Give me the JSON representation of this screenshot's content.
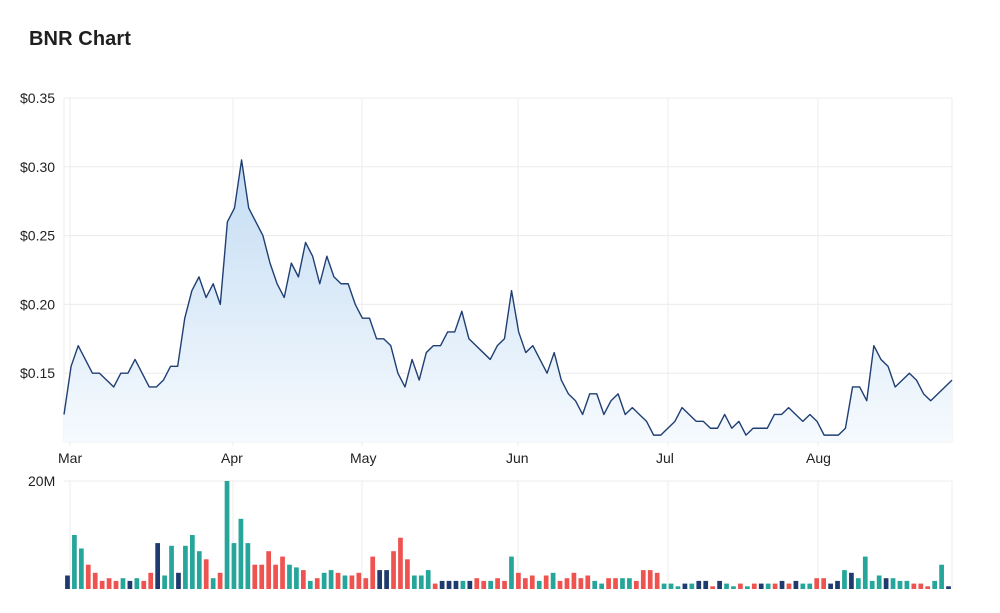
{
  "title": "BNR Chart",
  "chart_data": [
    {
      "type": "area",
      "x_ticks": [
        "Mar",
        "Apr",
        "May",
        "Jun",
        "Jul",
        "Aug"
      ],
      "y_ticks": [
        "$0.35",
        "$0.30",
        "$0.25",
        "$0.20",
        "$0.15"
      ],
      "ylim": [
        0.1,
        0.35
      ],
      "grid": true,
      "colors": {
        "line": "#1f3f73",
        "fill_top": "#c3dcf3",
        "fill_bottom": "#f6fafe",
        "grid": "#ececec"
      },
      "values": [
        0.12,
        0.155,
        0.17,
        0.16,
        0.15,
        0.15,
        0.145,
        0.14,
        0.15,
        0.15,
        0.16,
        0.15,
        0.14,
        0.14,
        0.145,
        0.155,
        0.155,
        0.19,
        0.21,
        0.22,
        0.205,
        0.215,
        0.2,
        0.26,
        0.27,
        0.305,
        0.27,
        0.26,
        0.25,
        0.23,
        0.215,
        0.205,
        0.23,
        0.22,
        0.245,
        0.235,
        0.215,
        0.235,
        0.22,
        0.215,
        0.215,
        0.2,
        0.19,
        0.19,
        0.175,
        0.175,
        0.17,
        0.15,
        0.14,
        0.16,
        0.145,
        0.165,
        0.17,
        0.17,
        0.18,
        0.18,
        0.195,
        0.175,
        0.17,
        0.165,
        0.16,
        0.17,
        0.175,
        0.21,
        0.18,
        0.165,
        0.17,
        0.16,
        0.15,
        0.165,
        0.145,
        0.135,
        0.13,
        0.12,
        0.135,
        0.135,
        0.12,
        0.13,
        0.135,
        0.12,
        0.125,
        0.12,
        0.115,
        0.105,
        0.105,
        0.11,
        0.115,
        0.125,
        0.12,
        0.115,
        0.115,
        0.11,
        0.11,
        0.12,
        0.11,
        0.115,
        0.105,
        0.11,
        0.11,
        0.11,
        0.12,
        0.12,
        0.125,
        0.12,
        0.115,
        0.12,
        0.115,
        0.105,
        0.105,
        0.105,
        0.11,
        0.14,
        0.14,
        0.13,
        0.17,
        0.16,
        0.155,
        0.14,
        0.145,
        0.15,
        0.145,
        0.135,
        0.13,
        0.135,
        0.14,
        0.145
      ]
    },
    {
      "type": "bar",
      "y_ticks": [
        "20M"
      ],
      "ylim": [
        0,
        20000000
      ],
      "colors": {
        "up": "#26a69a",
        "down": "#ef5350",
        "flat": "#1f3a6e"
      },
      "bars": [
        {
          "v": 2500000,
          "c": "flat"
        },
        {
          "v": 10000000,
          "c": "up"
        },
        {
          "v": 7500000,
          "c": "up"
        },
        {
          "v": 4500000,
          "c": "down"
        },
        {
          "v": 3000000,
          "c": "down"
        },
        {
          "v": 1500000,
          "c": "down"
        },
        {
          "v": 2000000,
          "c": "down"
        },
        {
          "v": 1500000,
          "c": "down"
        },
        {
          "v": 2000000,
          "c": "up"
        },
        {
          "v": 1500000,
          "c": "flat"
        },
        {
          "v": 2000000,
          "c": "up"
        },
        {
          "v": 1500000,
          "c": "down"
        },
        {
          "v": 3000000,
          "c": "down"
        },
        {
          "v": 8500000,
          "c": "flat"
        },
        {
          "v": 2500000,
          "c": "up"
        },
        {
          "v": 8000000,
          "c": "up"
        },
        {
          "v": 3000000,
          "c": "flat"
        },
        {
          "v": 8000000,
          "c": "up"
        },
        {
          "v": 10000000,
          "c": "up"
        },
        {
          "v": 7000000,
          "c": "up"
        },
        {
          "v": 5500000,
          "c": "down"
        },
        {
          "v": 2000000,
          "c": "up"
        },
        {
          "v": 3000000,
          "c": "down"
        },
        {
          "v": 20000000,
          "c": "up"
        },
        {
          "v": 8500000,
          "c": "up"
        },
        {
          "v": 13000000,
          "c": "up"
        },
        {
          "v": 8500000,
          "c": "up"
        },
        {
          "v": 4500000,
          "c": "down"
        },
        {
          "v": 4500000,
          "c": "down"
        },
        {
          "v": 7000000,
          "c": "down"
        },
        {
          "v": 4500000,
          "c": "down"
        },
        {
          "v": 6000000,
          "c": "down"
        },
        {
          "v": 4500000,
          "c": "up"
        },
        {
          "v": 4000000,
          "c": "up"
        },
        {
          "v": 3500000,
          "c": "down"
        },
        {
          "v": 1500000,
          "c": "up"
        },
        {
          "v": 2000000,
          "c": "down"
        },
        {
          "v": 3000000,
          "c": "up"
        },
        {
          "v": 3500000,
          "c": "up"
        },
        {
          "v": 3000000,
          "c": "down"
        },
        {
          "v": 2500000,
          "c": "up"
        },
        {
          "v": 2500000,
          "c": "down"
        },
        {
          "v": 3000000,
          "c": "down"
        },
        {
          "v": 2000000,
          "c": "down"
        },
        {
          "v": 6000000,
          "c": "down"
        },
        {
          "v": 3500000,
          "c": "flat"
        },
        {
          "v": 3500000,
          "c": "flat"
        },
        {
          "v": 7000000,
          "c": "down"
        },
        {
          "v": 9500000,
          "c": "down"
        },
        {
          "v": 5500000,
          "c": "down"
        },
        {
          "v": 2500000,
          "c": "up"
        },
        {
          "v": 2500000,
          "c": "up"
        },
        {
          "v": 3500000,
          "c": "up"
        },
        {
          "v": 1000000,
          "c": "down"
        },
        {
          "v": 1500000,
          "c": "flat"
        },
        {
          "v": 1500000,
          "c": "flat"
        },
        {
          "v": 1500000,
          "c": "flat"
        },
        {
          "v": 1500000,
          "c": "up"
        },
        {
          "v": 1500000,
          "c": "flat"
        },
        {
          "v": 2000000,
          "c": "down"
        },
        {
          "v": 1500000,
          "c": "down"
        },
        {
          "v": 1500000,
          "c": "up"
        },
        {
          "v": 2000000,
          "c": "down"
        },
        {
          "v": 1500000,
          "c": "down"
        },
        {
          "v": 6000000,
          "c": "up"
        },
        {
          "v": 3000000,
          "c": "down"
        },
        {
          "v": 2000000,
          "c": "down"
        },
        {
          "v": 2500000,
          "c": "down"
        },
        {
          "v": 1500000,
          "c": "up"
        },
        {
          "v": 2500000,
          "c": "down"
        },
        {
          "v": 3000000,
          "c": "up"
        },
        {
          "v": 1500000,
          "c": "down"
        },
        {
          "v": 2000000,
          "c": "down"
        },
        {
          "v": 3000000,
          "c": "down"
        },
        {
          "v": 2000000,
          "c": "down"
        },
        {
          "v": 2500000,
          "c": "down"
        },
        {
          "v": 1500000,
          "c": "up"
        },
        {
          "v": 1000000,
          "c": "up"
        },
        {
          "v": 2000000,
          "c": "down"
        },
        {
          "v": 2000000,
          "c": "down"
        },
        {
          "v": 2000000,
          "c": "up"
        },
        {
          "v": 2000000,
          "c": "up"
        },
        {
          "v": 1500000,
          "c": "down"
        },
        {
          "v": 3500000,
          "c": "down"
        },
        {
          "v": 3500000,
          "c": "down"
        },
        {
          "v": 3000000,
          "c": "down"
        },
        {
          "v": 1000000,
          "c": "up"
        },
        {
          "v": 1000000,
          "c": "up"
        },
        {
          "v": 500000,
          "c": "up"
        },
        {
          "v": 1000000,
          "c": "flat"
        },
        {
          "v": 1000000,
          "c": "up"
        },
        {
          "v": 1500000,
          "c": "flat"
        },
        {
          "v": 1500000,
          "c": "flat"
        },
        {
          "v": 500000,
          "c": "down"
        },
        {
          "v": 1500000,
          "c": "flat"
        },
        {
          "v": 1000000,
          "c": "up"
        },
        {
          "v": 500000,
          "c": "up"
        },
        {
          "v": 1000000,
          "c": "down"
        },
        {
          "v": 500000,
          "c": "up"
        },
        {
          "v": 1000000,
          "c": "down"
        },
        {
          "v": 1000000,
          "c": "flat"
        },
        {
          "v": 1000000,
          "c": "up"
        },
        {
          "v": 1000000,
          "c": "down"
        },
        {
          "v": 1500000,
          "c": "flat"
        },
        {
          "v": 1000000,
          "c": "down"
        },
        {
          "v": 1500000,
          "c": "flat"
        },
        {
          "v": 1000000,
          "c": "up"
        },
        {
          "v": 1000000,
          "c": "up"
        },
        {
          "v": 2000000,
          "c": "down"
        },
        {
          "v": 2000000,
          "c": "down"
        },
        {
          "v": 1000000,
          "c": "flat"
        },
        {
          "v": 1500000,
          "c": "flat"
        },
        {
          "v": 3500000,
          "c": "up"
        },
        {
          "v": 3000000,
          "c": "flat"
        },
        {
          "v": 2000000,
          "c": "up"
        },
        {
          "v": 6000000,
          "c": "up"
        },
        {
          "v": 1500000,
          "c": "up"
        },
        {
          "v": 2500000,
          "c": "up"
        },
        {
          "v": 2000000,
          "c": "flat"
        },
        {
          "v": 2000000,
          "c": "up"
        },
        {
          "v": 1500000,
          "c": "up"
        },
        {
          "v": 1500000,
          "c": "up"
        },
        {
          "v": 1000000,
          "c": "down"
        },
        {
          "v": 1000000,
          "c": "down"
        },
        {
          "v": 500000,
          "c": "down"
        },
        {
          "v": 1500000,
          "c": "up"
        },
        {
          "v": 4500000,
          "c": "up"
        },
        {
          "v": 500000,
          "c": "flat"
        }
      ]
    }
  ]
}
